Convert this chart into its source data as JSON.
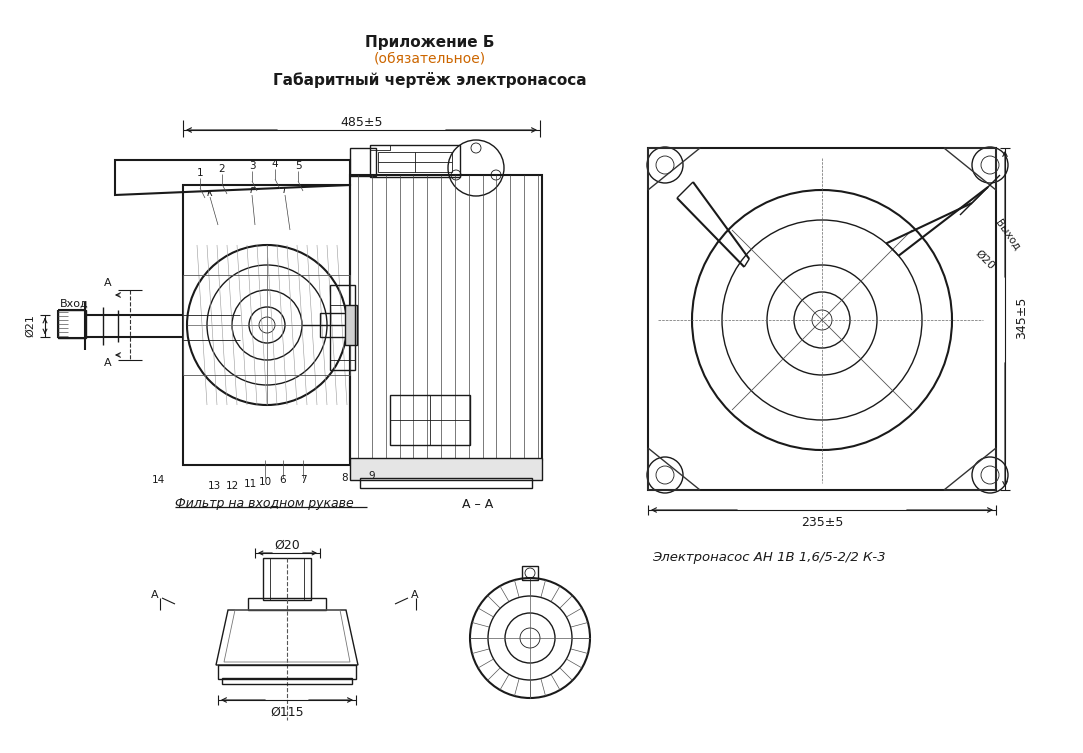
{
  "title1": "Приложение Б",
  "title2": "(обязательное)",
  "title3": "Габаритный чертёж электронасоса",
  "subtitle": "Электронасос АН 1В 1,6/5-2/2 К-3",
  "filter_label": "Фильтр на входном рукаве",
  "section_label": "А – А",
  "dim_485": "485±5",
  "dim_345": "345±5",
  "dim_235": "235±5",
  "dim_phi20_outlet": "Ø20",
  "dim_phi21": "Ø21",
  "dim_phi20_bot": "Ø20",
  "dim_phi115": "Ø115",
  "label_vhod": "Вход",
  "label_vyhod": "Выход",
  "bg": "#ffffff",
  "dc": "#1a1a1a",
  "orange": "#cc6600"
}
